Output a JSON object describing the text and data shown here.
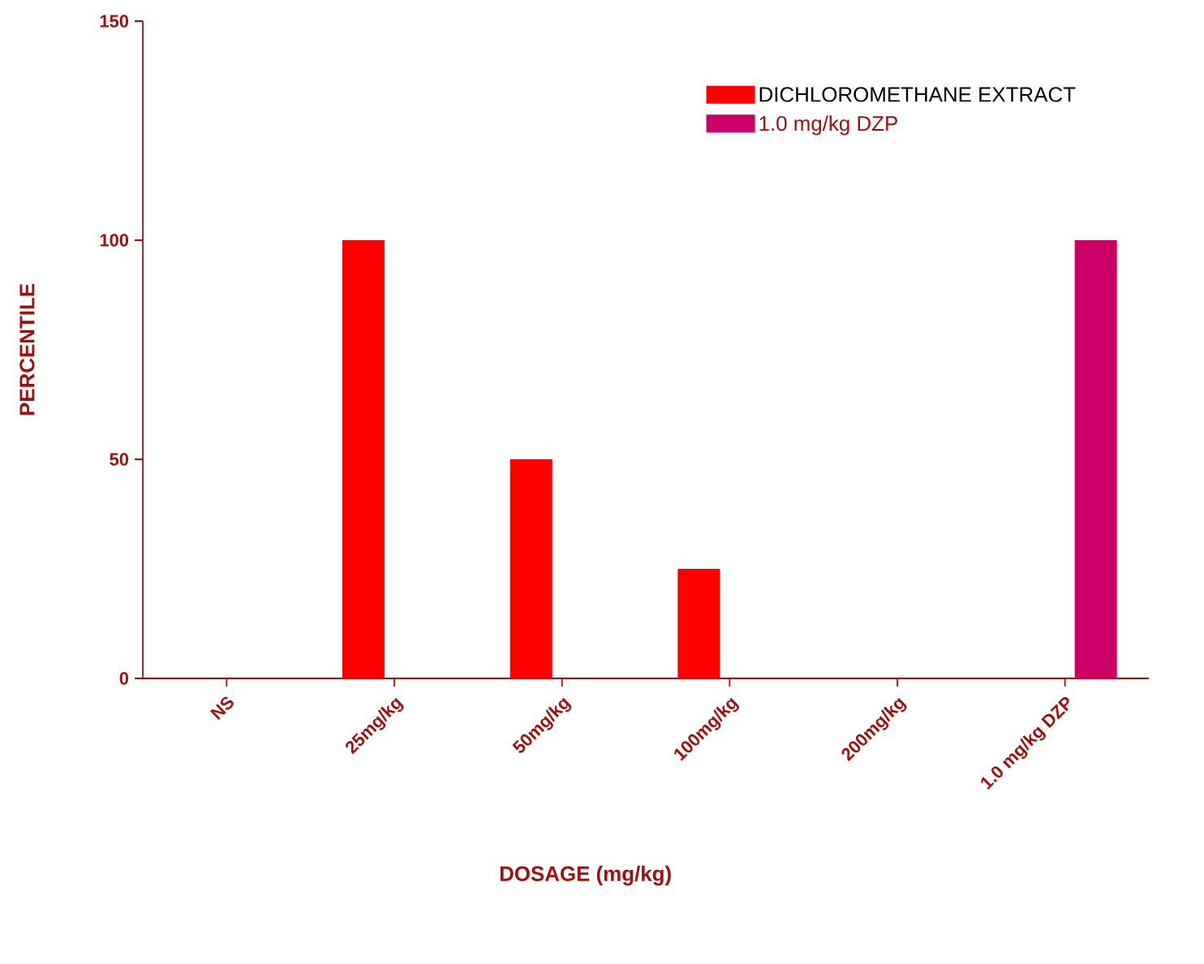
{
  "chart_data": {
    "type": "bar",
    "xlabel": "DOSAGE (mg/kg)",
    "ylabel": "PERCENTILE",
    "categories": [
      "NS",
      "25mg/kg",
      "50mg/kg",
      "100mg/kg",
      "200mg/kg",
      "1.0 mg/kg DZP"
    ],
    "series": [
      {
        "name": "DICHLOROMETHANE EXTRACT",
        "color": "#ff0000",
        "values": [
          0,
          100,
          50,
          25,
          0,
          null
        ]
      },
      {
        "name": "1.0 mg/kg DZP",
        "color": "#cc0066",
        "values": [
          null,
          null,
          null,
          null,
          null,
          100
        ]
      }
    ],
    "ylim": [
      0,
      150
    ],
    "yticks": [
      0,
      50,
      100,
      150
    ],
    "grid": false,
    "legend": "top right"
  }
}
